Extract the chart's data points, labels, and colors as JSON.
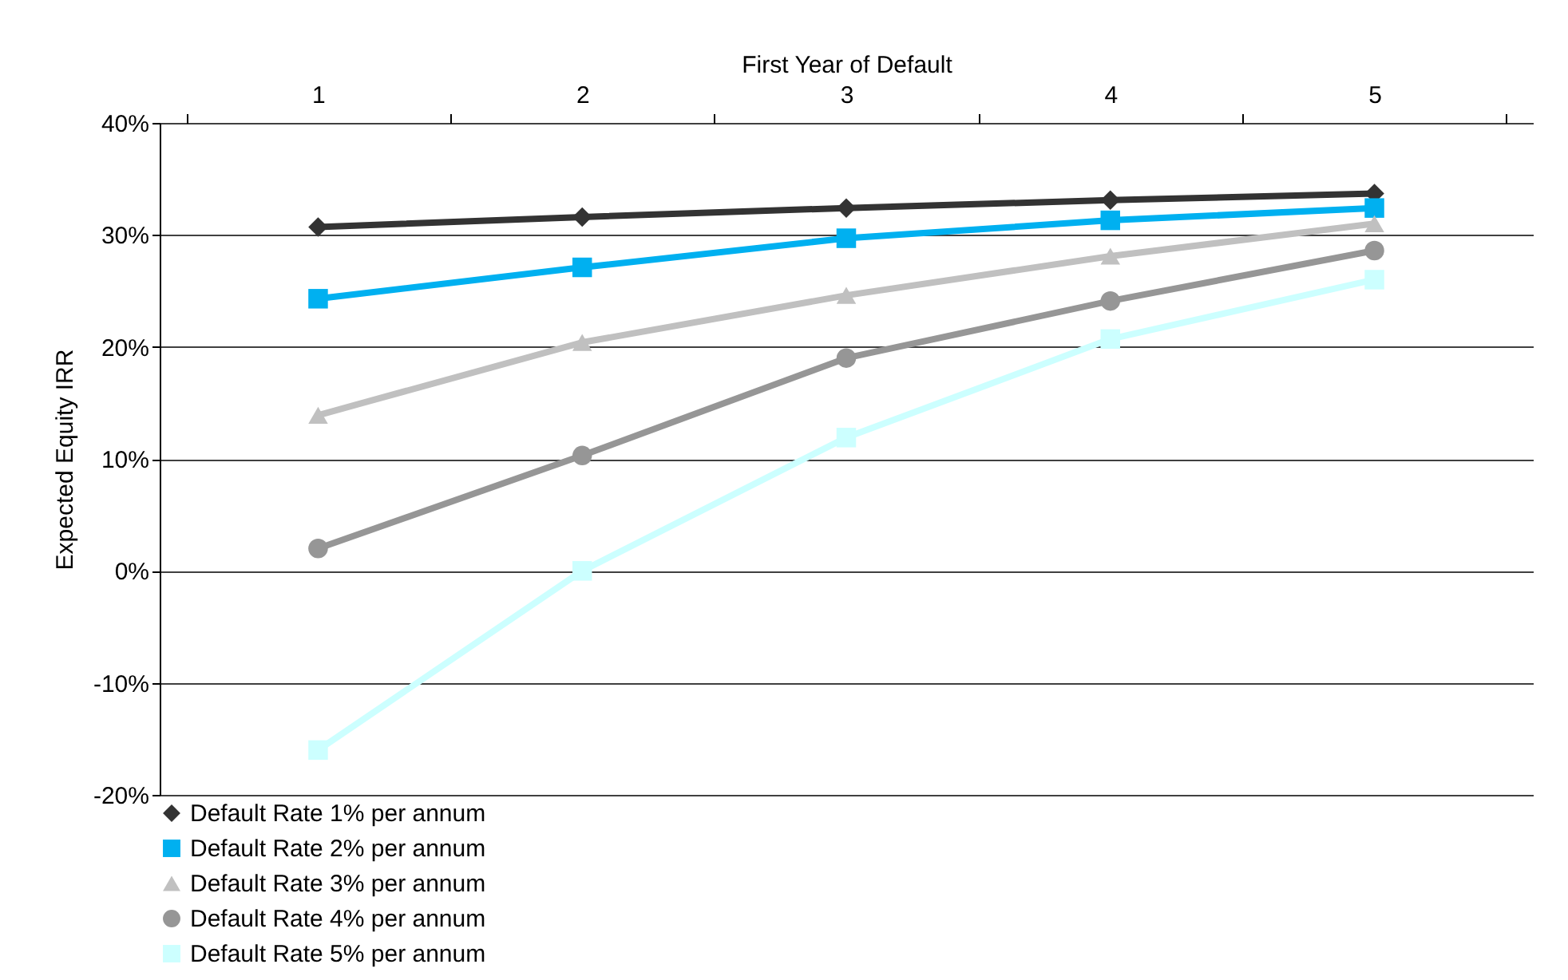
{
  "chart_data": {
    "type": "line",
    "xlabel": "First Year of Default",
    "ylabel": "Expected Equity IRR",
    "categories": [
      "1",
      "2",
      "3",
      "4",
      "5"
    ],
    "ylim": [
      -20,
      40
    ],
    "yticks": [
      {
        "value": -20,
        "label": "-20%"
      },
      {
        "value": -10,
        "label": "-10%"
      },
      {
        "value": 0,
        "label": "0%"
      },
      {
        "value": 10,
        "label": "10%"
      },
      {
        "value": 20,
        "label": "20%"
      },
      {
        "value": 30,
        "label": "30%"
      },
      {
        "value": 40,
        "label": "40%"
      }
    ],
    "grid": "y",
    "legend": "bottom",
    "series": [
      {
        "name": "Default Rate 1% per annum",
        "color": "#333333",
        "marker": "diamond",
        "values": [
          30.7,
          31.6,
          32.4,
          33.1,
          33.7
        ]
      },
      {
        "name": "Default Rate 2% per annum",
        "color": "#00b0f0",
        "marker": "square",
        "values": [
          24.3,
          27.1,
          29.7,
          31.3,
          32.4
        ]
      },
      {
        "name": "Default Rate 3% per annum",
        "color": "#c0c0c0",
        "marker": "triangle",
        "values": [
          13.9,
          20.4,
          24.6,
          28.1,
          31.0
        ]
      },
      {
        "name": "Default Rate 4% per annum",
        "color": "#969696",
        "marker": "circle",
        "values": [
          2.0,
          10.3,
          19.0,
          24.1,
          28.6
        ]
      },
      {
        "name": "Default Rate 5% per annum",
        "color": "#ccffff",
        "marker": "square",
        "values": [
          -16,
          0,
          11.9,
          20.7,
          26.0
        ]
      }
    ]
  }
}
